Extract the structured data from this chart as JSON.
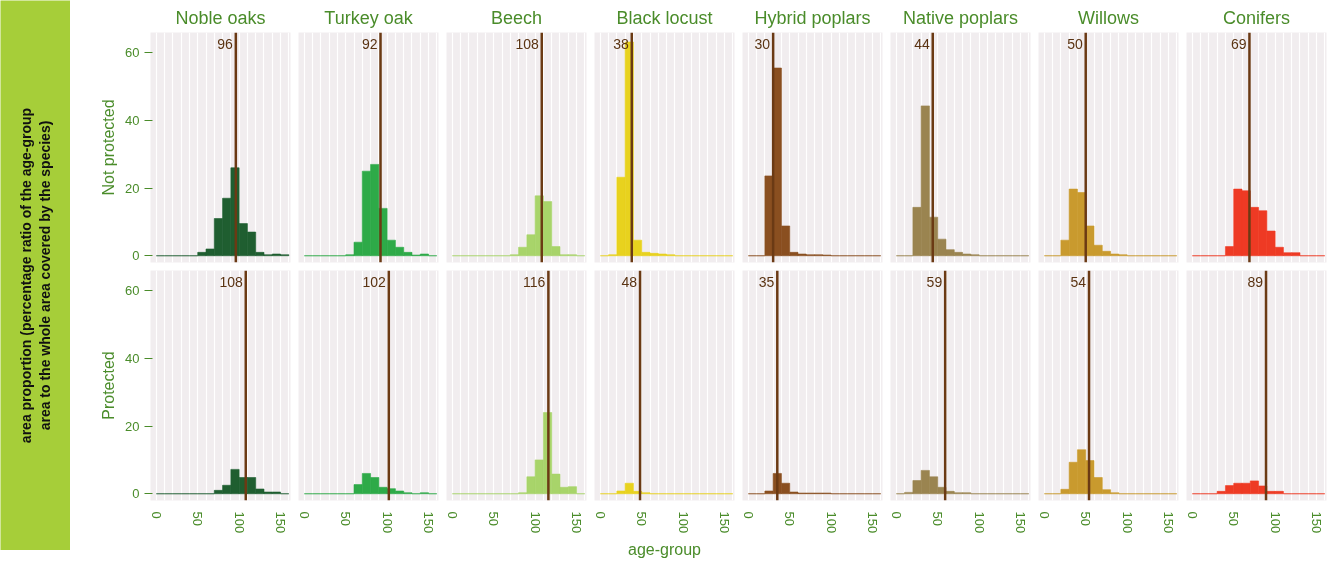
{
  "chart_data": [
    {
      "type": "histogram",
      "title": "Noble oaks",
      "ylabel": "Not protected",
      "annotations": [
        "area proportion (percentage ratio of the age-group area to the whole area covered by the species)"
      ],
      "bins": [
        0,
        10,
        20,
        30,
        40,
        50,
        60,
        70,
        80,
        90,
        100,
        110,
        120,
        130,
        140,
        150,
        160
      ],
      "values": [
        0,
        0,
        0,
        0,
        0,
        1,
        2,
        11,
        17,
        26,
        9.5,
        7,
        1,
        0.3,
        0.5,
        0.3
      ],
      "color": "#1f5e30",
      "xlim": [
        -7,
        162
      ],
      "ylim": [
        -2,
        66
      ],
      "xticks": [
        0,
        {
          "value": 10,
          "label": null
        },
        {
          "value": 20,
          "label": null
        },
        {
          "value": 30,
          "label": null
        },
        {
          "value": 40,
          "label": null
        },
        50,
        {
          "value": 60,
          "label": null
        },
        {
          "value": 70,
          "label": null
        },
        {
          "value": 80,
          "label": null
        },
        {
          "value": 90,
          "label": null
        },
        100,
        {
          "value": 110,
          "label": null
        },
        {
          "value": 120,
          "label": null
        },
        {
          "value": 130,
          "label": null
        },
        {
          "value": 140,
          "label": null
        },
        150,
        {
          "value": 160,
          "label": null
        }
      ],
      "yticks": [
        0,
        20,
        40,
        60
      ],
      "ref_lines": [
        {
          "axis": "x",
          "value": 96,
          "label": "96",
          "color": "#6b3a14"
        }
      ],
      "grid": "x",
      "tick_labels": "y"
    },
    {
      "type": "histogram",
      "title": "Turkey oak",
      "bins": [
        0,
        10,
        20,
        30,
        40,
        50,
        60,
        70,
        80,
        90,
        100,
        110,
        120,
        130,
        140,
        150,
        160
      ],
      "values": [
        0,
        0,
        0,
        0,
        0,
        0.3,
        4,
        25,
        27,
        14,
        4.6,
        2.5,
        1,
        0.2,
        0.5,
        0
      ],
      "color": "#2eaa48",
      "xlim": [
        -7,
        162
      ],
      "ylim": [
        -2,
        66
      ],
      "xticks": [
        0,
        {
          "value": 10,
          "label": null
        },
        {
          "value": 20,
          "label": null
        },
        {
          "value": 30,
          "label": null
        },
        {
          "value": 40,
          "label": null
        },
        50,
        {
          "value": 60,
          "label": null
        },
        {
          "value": 70,
          "label": null
        },
        {
          "value": 80,
          "label": null
        },
        {
          "value": 90,
          "label": null
        },
        100,
        {
          "value": 110,
          "label": null
        },
        {
          "value": 120,
          "label": null
        },
        {
          "value": 130,
          "label": null
        },
        {
          "value": 140,
          "label": null
        },
        150,
        {
          "value": 160,
          "label": null
        }
      ],
      "yticks": [
        0,
        20,
        40,
        60
      ],
      "ref_lines": [
        {
          "axis": "x",
          "value": 92,
          "label": "92",
          "color": "#6b3a14"
        }
      ],
      "grid": "x",
      "tick_labels": false
    },
    {
      "type": "histogram",
      "title": "Beech",
      "bins": [
        0,
        10,
        20,
        30,
        40,
        50,
        60,
        70,
        80,
        90,
        100,
        110,
        120,
        130,
        140,
        150,
        160
      ],
      "values": [
        0,
        0,
        0,
        0,
        0,
        0,
        0,
        0.3,
        2.5,
        6.2,
        17.7,
        16,
        2.7,
        0.3,
        0.3,
        0
      ],
      "color": "#a8d46a",
      "xlim": [
        -7,
        162
      ],
      "ylim": [
        -2,
        66
      ],
      "xticks": [
        0,
        {
          "value": 10,
          "label": null
        },
        {
          "value": 20,
          "label": null
        },
        {
          "value": 30,
          "label": null
        },
        {
          "value": 40,
          "label": null
        },
        50,
        {
          "value": 60,
          "label": null
        },
        {
          "value": 70,
          "label": null
        },
        {
          "value": 80,
          "label": null
        },
        {
          "value": 90,
          "label": null
        },
        100,
        {
          "value": 110,
          "label": null
        },
        {
          "value": 120,
          "label": null
        },
        {
          "value": 130,
          "label": null
        },
        {
          "value": 140,
          "label": null
        },
        150,
        {
          "value": 160,
          "label": null
        }
      ],
      "yticks": [
        0,
        20,
        40,
        60
      ],
      "ref_lines": [
        {
          "axis": "x",
          "value": 108,
          "label": "108",
          "color": "#6b3a14"
        }
      ],
      "grid": "x",
      "tick_labels": false
    },
    {
      "type": "histogram",
      "title": "Black locust",
      "bins": [
        0,
        10,
        20,
        30,
        40,
        50,
        60,
        70,
        80,
        90,
        100,
        110,
        120,
        130,
        140,
        150,
        160
      ],
      "values": [
        0,
        0.3,
        23.2,
        63.2,
        4.6,
        1,
        0.7,
        0.5,
        0.3,
        0,
        0,
        0,
        0,
        0,
        0,
        0
      ],
      "color": "#e8d21e",
      "xlim": [
        -7,
        162
      ],
      "ylim": [
        -2,
        66
      ],
      "xticks": [
        0,
        {
          "value": 10,
          "label": null
        },
        {
          "value": 20,
          "label": null
        },
        {
          "value": 30,
          "label": null
        },
        {
          "value": 40,
          "label": null
        },
        50,
        {
          "value": 60,
          "label": null
        },
        {
          "value": 70,
          "label": null
        },
        {
          "value": 80,
          "label": null
        },
        {
          "value": 90,
          "label": null
        },
        100,
        {
          "value": 110,
          "label": null
        },
        {
          "value": 120,
          "label": null
        },
        {
          "value": 130,
          "label": null
        },
        {
          "value": 140,
          "label": null
        },
        150,
        {
          "value": 160,
          "label": null
        }
      ],
      "yticks": [
        0,
        20,
        40,
        60
      ],
      "ref_lines": [
        {
          "axis": "x",
          "value": 38,
          "label": "38",
          "color": "#6b3a14"
        }
      ],
      "grid": "x",
      "tick_labels": false
    },
    {
      "type": "histogram",
      "title": "Hybrid poplars",
      "bins": [
        0,
        10,
        20,
        30,
        40,
        50,
        60,
        70,
        80,
        90,
        100,
        110,
        120,
        130,
        140,
        150,
        160
      ],
      "values": [
        0,
        0,
        23.6,
        55.5,
        8.8,
        1,
        0.5,
        0.3,
        0.3,
        0.2,
        0,
        0,
        0,
        0,
        0,
        0
      ],
      "color": "#8a4f20",
      "xlim": [
        -7,
        162
      ],
      "ylim": [
        -2,
        66
      ],
      "xticks": [
        0,
        {
          "value": 10,
          "label": null
        },
        {
          "value": 20,
          "label": null
        },
        {
          "value": 30,
          "label": null
        },
        {
          "value": 40,
          "label": null
        },
        50,
        {
          "value": 60,
          "label": null
        },
        {
          "value": 70,
          "label": null
        },
        {
          "value": 80,
          "label": null
        },
        {
          "value": 90,
          "label": null
        },
        100,
        {
          "value": 110,
          "label": null
        },
        {
          "value": 120,
          "label": null
        },
        {
          "value": 130,
          "label": null
        },
        {
          "value": 140,
          "label": null
        },
        150,
        {
          "value": 160,
          "label": null
        }
      ],
      "yticks": [
        0,
        20,
        40,
        60
      ],
      "ref_lines": [
        {
          "axis": "x",
          "value": 30,
          "label": "30",
          "color": "#6b3a14"
        }
      ],
      "grid": "x",
      "tick_labels": false
    },
    {
      "type": "histogram",
      "title": "Native poplars",
      "bins": [
        0,
        10,
        20,
        30,
        40,
        50,
        60,
        70,
        80,
        90,
        100,
        110,
        120,
        130,
        140,
        150,
        160
      ],
      "values": [
        0,
        0,
        14.3,
        44.3,
        11.4,
        4.9,
        1.8,
        1,
        0.5,
        0.3,
        0,
        0,
        0,
        0,
        0,
        0
      ],
      "color": "#9a8450",
      "xlim": [
        -7,
        162
      ],
      "ylim": [
        -2,
        66
      ],
      "xticks": [
        0,
        {
          "value": 10,
          "label": null
        },
        {
          "value": 20,
          "label": null
        },
        {
          "value": 30,
          "label": null
        },
        {
          "value": 40,
          "label": null
        },
        50,
        {
          "value": 60,
          "label": null
        },
        {
          "value": 70,
          "label": null
        },
        {
          "value": 80,
          "label": null
        },
        {
          "value": 90,
          "label": null
        },
        100,
        {
          "value": 110,
          "label": null
        },
        {
          "value": 120,
          "label": null
        },
        {
          "value": 130,
          "label": null
        },
        {
          "value": 140,
          "label": null
        },
        150,
        {
          "value": 160,
          "label": null
        }
      ],
      "yticks": [
        0,
        20,
        40,
        60
      ],
      "ref_lines": [
        {
          "axis": "x",
          "value": 44,
          "label": "44",
          "color": "#6b3a14"
        }
      ],
      "grid": "x",
      "tick_labels": false
    },
    {
      "type": "histogram",
      "title": "Willows",
      "bins": [
        0,
        10,
        20,
        30,
        40,
        50,
        60,
        70,
        80,
        90,
        100,
        110,
        120,
        130,
        140,
        150,
        160
      ],
      "values": [
        0,
        0,
        4.6,
        19.7,
        18.7,
        8.8,
        3.1,
        1.3,
        0.5,
        0.3,
        0,
        0,
        0,
        0,
        0,
        0
      ],
      "color": "#c99a2e",
      "xlim": [
        -7,
        162
      ],
      "ylim": [
        -2,
        66
      ],
      "xticks": [
        0,
        {
          "value": 10,
          "label": null
        },
        {
          "value": 20,
          "label": null
        },
        {
          "value": 30,
          "label": null
        },
        {
          "value": 40,
          "label": null
        },
        50,
        {
          "value": 60,
          "label": null
        },
        {
          "value": 70,
          "label": null
        },
        {
          "value": 80,
          "label": null
        },
        {
          "value": 90,
          "label": null
        },
        100,
        {
          "value": 110,
          "label": null
        },
        {
          "value": 120,
          "label": null
        },
        {
          "value": 130,
          "label": null
        },
        {
          "value": 140,
          "label": null
        },
        150,
        {
          "value": 160,
          "label": null
        }
      ],
      "yticks": [
        0,
        20,
        40,
        60
      ],
      "ref_lines": [
        {
          "axis": "x",
          "value": 50,
          "label": "50",
          "color": "#6b3a14"
        }
      ],
      "grid": "x",
      "tick_labels": false
    },
    {
      "type": "histogram",
      "title": "Conifers",
      "bins": [
        0,
        10,
        20,
        30,
        40,
        50,
        60,
        70,
        80,
        90,
        100,
        110,
        120,
        130,
        140,
        150,
        160
      ],
      "values": [
        0,
        0,
        0,
        0,
        2.7,
        19.7,
        19.2,
        14.3,
        13.3,
        7.3,
        2.5,
        0.9,
        0.9,
        0,
        0,
        0
      ],
      "color": "#ee3a24",
      "xlim": [
        -7,
        162
      ],
      "ylim": [
        -2,
        66
      ],
      "xticks": [
        0,
        {
          "value": 10,
          "label": null
        },
        {
          "value": 20,
          "label": null
        },
        {
          "value": 30,
          "label": null
        },
        {
          "value": 40,
          "label": null
        },
        50,
        {
          "value": 60,
          "label": null
        },
        {
          "value": 70,
          "label": null
        },
        {
          "value": 80,
          "label": null
        },
        {
          "value": 90,
          "label": null
        },
        100,
        {
          "value": 110,
          "label": null
        },
        {
          "value": 120,
          "label": null
        },
        {
          "value": 130,
          "label": null
        },
        {
          "value": 140,
          "label": null
        },
        150,
        {
          "value": 160,
          "label": null
        }
      ],
      "yticks": [
        0,
        20,
        40,
        60
      ],
      "ref_lines": [
        {
          "axis": "x",
          "value": 69,
          "label": "69",
          "color": "#6b3a14"
        }
      ],
      "grid": "x",
      "tick_labels": false
    },
    {
      "type": "histogram",
      "ylabel": "Protected",
      "bins": [
        0,
        10,
        20,
        30,
        40,
        50,
        60,
        70,
        80,
        90,
        100,
        110,
        120,
        130,
        140,
        150,
        160
      ],
      "values": [
        0,
        0,
        0,
        0,
        0,
        0,
        0,
        1,
        2.5,
        7.2,
        4.8,
        4.8,
        1.4,
        0.5,
        0.5,
        0
      ],
      "color": "#1f5e30",
      "xlim": [
        -7,
        162
      ],
      "ylim": [
        -2,
        66
      ],
      "xticks": [
        0,
        {
          "value": 10,
          "label": null
        },
        {
          "value": 20,
          "label": null
        },
        {
          "value": 30,
          "label": null
        },
        {
          "value": 40,
          "label": null
        },
        50,
        {
          "value": 60,
          "label": null
        },
        {
          "value": 70,
          "label": null
        },
        {
          "value": 80,
          "label": null
        },
        {
          "value": 90,
          "label": null
        },
        100,
        {
          "value": 110,
          "label": null
        },
        {
          "value": 120,
          "label": null
        },
        {
          "value": 130,
          "label": null
        },
        {
          "value": 140,
          "label": null
        },
        150,
        {
          "value": 160,
          "label": null
        }
      ],
      "yticks": [
        0,
        20,
        40,
        60
      ],
      "ref_lines": [
        {
          "axis": "x",
          "value": 108,
          "label": "108",
          "color": "#6b3a14"
        }
      ],
      "grid": "x"
    },
    {
      "type": "histogram",
      "bins": [
        0,
        10,
        20,
        30,
        40,
        50,
        60,
        70,
        80,
        90,
        100,
        110,
        120,
        130,
        140,
        150,
        160
      ],
      "values": [
        0,
        0,
        0,
        0,
        0,
        0,
        2.7,
        6,
        4.8,
        1.9,
        1.5,
        0.8,
        0.3,
        0,
        0.3,
        0
      ],
      "color": "#2eaa48",
      "xlim": [
        -7,
        162
      ],
      "ylim": [
        -2,
        66
      ],
      "xticks": [
        0,
        {
          "value": 10,
          "label": null
        },
        {
          "value": 20,
          "label": null
        },
        {
          "value": 30,
          "label": null
        },
        {
          "value": 40,
          "label": null
        },
        50,
        {
          "value": 60,
          "label": null
        },
        {
          "value": 70,
          "label": null
        },
        {
          "value": 80,
          "label": null
        },
        {
          "value": 90,
          "label": null
        },
        100,
        {
          "value": 110,
          "label": null
        },
        {
          "value": 120,
          "label": null
        },
        {
          "value": 130,
          "label": null
        },
        {
          "value": 140,
          "label": null
        },
        150,
        {
          "value": 160,
          "label": null
        }
      ],
      "yticks": [
        0,
        20,
        40,
        60
      ],
      "ref_lines": [
        {
          "axis": "x",
          "value": 102,
          "label": "102",
          "color": "#6b3a14"
        }
      ],
      "grid": "x",
      "tick_labels": "x"
    },
    {
      "type": "histogram",
      "bins": [
        0,
        10,
        20,
        30,
        40,
        50,
        60,
        70,
        80,
        90,
        100,
        110,
        120,
        130,
        140,
        150,
        160
      ],
      "values": [
        0,
        0,
        0,
        0,
        0,
        0,
        0,
        0,
        0.3,
        5,
        10,
        24,
        5.8,
        1.9,
        2.1,
        0
      ],
      "color": "#a8d46a",
      "xlim": [
        -7,
        162
      ],
      "ylim": [
        -2,
        66
      ],
      "xticks": [
        0,
        {
          "value": 10,
          "label": null
        },
        {
          "value": 20,
          "label": null
        },
        {
          "value": 30,
          "label": null
        },
        {
          "value": 40,
          "label": null
        },
        50,
        {
          "value": 60,
          "label": null
        },
        {
          "value": 70,
          "label": null
        },
        {
          "value": 80,
          "label": null
        },
        {
          "value": 90,
          "label": null
        },
        100,
        {
          "value": 110,
          "label": null
        },
        {
          "value": 120,
          "label": null
        },
        {
          "value": 130,
          "label": null
        },
        {
          "value": 140,
          "label": null
        },
        150,
        {
          "value": 160,
          "label": null
        }
      ],
      "yticks": [
        0,
        20,
        40,
        60
      ],
      "ref_lines": [
        {
          "axis": "x",
          "value": 116,
          "label": "116",
          "color": "#6b3a14"
        }
      ],
      "grid": "x",
      "tick_labels": "x"
    },
    {
      "type": "histogram",
      "bins": [
        0,
        10,
        20,
        30,
        40,
        50,
        60,
        70,
        80,
        90,
        100,
        110,
        120,
        130,
        140,
        150,
        160
      ],
      "values": [
        0,
        0,
        0.8,
        3.1,
        0.7,
        0.3,
        0,
        0,
        0,
        0,
        0,
        0,
        0,
        0,
        0,
        0
      ],
      "color": "#e8d21e",
      "xlabel": "age-group",
      "xlim": [
        -7,
        162
      ],
      "ylim": [
        -2,
        66
      ],
      "xticks": [
        0,
        {
          "value": 10,
          "label": null
        },
        {
          "value": 20,
          "label": null
        },
        {
          "value": 30,
          "label": null
        },
        {
          "value": 40,
          "label": null
        },
        50,
        {
          "value": 60,
          "label": null
        },
        {
          "value": 70,
          "label": null
        },
        {
          "value": 80,
          "label": null
        },
        {
          "value": 90,
          "label": null
        },
        100,
        {
          "value": 110,
          "label": null
        },
        {
          "value": 120,
          "label": null
        },
        {
          "value": 130,
          "label": null
        },
        {
          "value": 140,
          "label": null
        },
        150,
        {
          "value": 160,
          "label": null
        }
      ],
      "yticks": [
        0,
        20,
        40,
        60
      ],
      "ref_lines": [
        {
          "axis": "x",
          "value": 48,
          "label": "48",
          "color": "#6b3a14"
        }
      ],
      "grid": "x",
      "tick_labels": "x"
    },
    {
      "type": "histogram",
      "bins": [
        0,
        10,
        20,
        30,
        40,
        50,
        60,
        70,
        80,
        90,
        100,
        110,
        120,
        130,
        140,
        150,
        160
      ],
      "values": [
        0,
        0,
        0.8,
        6,
        3.1,
        0.5,
        0.2,
        0.2,
        0.2,
        0.2,
        0,
        0,
        0,
        0,
        0,
        0
      ],
      "color": "#8a4f20",
      "xlim": [
        -7,
        162
      ],
      "ylim": [
        -2,
        66
      ],
      "xticks": [
        0,
        {
          "value": 10,
          "label": null
        },
        {
          "value": 20,
          "label": null
        },
        {
          "value": 30,
          "label": null
        },
        {
          "value": 40,
          "label": null
        },
        50,
        {
          "value": 60,
          "label": null
        },
        {
          "value": 70,
          "label": null
        },
        {
          "value": 80,
          "label": null
        },
        {
          "value": 90,
          "label": null
        },
        100,
        {
          "value": 110,
          "label": null
        },
        {
          "value": 120,
          "label": null
        },
        {
          "value": 130,
          "label": null
        },
        {
          "value": 140,
          "label": null
        },
        150,
        {
          "value": 160,
          "label": null
        }
      ],
      "yticks": [
        0,
        20,
        40,
        60
      ],
      "ref_lines": [
        {
          "axis": "x",
          "value": 35,
          "label": "35",
          "color": "#6b3a14"
        }
      ],
      "grid": "x",
      "tick_labels": "x"
    },
    {
      "type": "histogram",
      "bins": [
        0,
        10,
        20,
        30,
        40,
        50,
        60,
        70,
        80,
        90,
        100,
        110,
        120,
        130,
        140,
        150,
        160
      ],
      "values": [
        0,
        0.4,
        3.9,
        6.9,
        5,
        1.9,
        0.7,
        0.3,
        0.3,
        0,
        0,
        0,
        0,
        0,
        0,
        0
      ],
      "color": "#9a8450",
      "xlim": [
        -7,
        162
      ],
      "ylim": [
        -2,
        66
      ],
      "xticks": [
        0,
        {
          "value": 10,
          "label": null
        },
        {
          "value": 20,
          "label": null
        },
        {
          "value": 30,
          "label": null
        },
        {
          "value": 40,
          "label": null
        },
        50,
        {
          "value": 60,
          "label": null
        },
        {
          "value": 70,
          "label": null
        },
        {
          "value": 80,
          "label": null
        },
        {
          "value": 90,
          "label": null
        },
        100,
        {
          "value": 110,
          "label": null
        },
        {
          "value": 120,
          "label": null
        },
        {
          "value": 130,
          "label": null
        },
        {
          "value": 140,
          "label": null
        },
        150,
        {
          "value": 160,
          "label": null
        }
      ],
      "yticks": [
        0,
        20,
        40,
        60
      ],
      "ref_lines": [
        {
          "axis": "x",
          "value": 59,
          "label": "59",
          "color": "#6b3a14"
        }
      ],
      "grid": "x",
      "tick_labels": "x"
    },
    {
      "type": "histogram",
      "bins": [
        0,
        10,
        20,
        30,
        40,
        50,
        60,
        70,
        80,
        90,
        100,
        110,
        120,
        130,
        140,
        150,
        160
      ],
      "values": [
        0,
        0,
        1.3,
        9.3,
        13,
        9.8,
        4.8,
        1.2,
        0.3,
        0,
        0,
        0,
        0,
        0,
        0,
        0
      ],
      "color": "#c99a2e",
      "xlim": [
        -7,
        162
      ],
      "ylim": [
        -2,
        66
      ],
      "xticks": [
        0,
        {
          "value": 10,
          "label": null
        },
        {
          "value": 20,
          "label": null
        },
        {
          "value": 30,
          "label": null
        },
        {
          "value": 40,
          "label": null
        },
        50,
        {
          "value": 60,
          "label": null
        },
        {
          "value": 70,
          "label": null
        },
        {
          "value": 80,
          "label": null
        },
        {
          "value": 90,
          "label": null
        },
        100,
        {
          "value": 110,
          "label": null
        },
        {
          "value": 120,
          "label": null
        },
        {
          "value": 130,
          "label": null
        },
        {
          "value": 140,
          "label": null
        },
        150,
        {
          "value": 160,
          "label": null
        }
      ],
      "yticks": [
        0,
        20,
        40,
        60
      ],
      "ref_lines": [
        {
          "axis": "x",
          "value": 54,
          "label": "54",
          "color": "#6b3a14"
        }
      ],
      "grid": "x",
      "tick_labels": "x"
    },
    {
      "type": "histogram",
      "bins": [
        0,
        10,
        20,
        30,
        40,
        50,
        60,
        70,
        80,
        90,
        100,
        110,
        120,
        130,
        140,
        150,
        160
      ],
      "values": [
        0,
        0,
        0,
        0.7,
        2.4,
        3.1,
        3.1,
        3.8,
        2.3,
        0.7,
        0.7,
        0,
        0,
        0,
        0,
        0
      ],
      "color": "#ee3a24",
      "xlim": [
        -7,
        162
      ],
      "ylim": [
        -2,
        66
      ],
      "xticks": [
        0,
        {
          "value": 10,
          "label": null
        },
        {
          "value": 20,
          "label": null
        },
        {
          "value": 30,
          "label": null
        },
        {
          "value": 40,
          "label": null
        },
        50,
        {
          "value": 60,
          "label": null
        },
        {
          "value": 70,
          "label": null
        },
        {
          "value": 80,
          "label": null
        },
        {
          "value": 90,
          "label": null
        },
        100,
        {
          "value": 110,
          "label": null
        },
        {
          "value": 120,
          "label": null
        },
        {
          "value": 130,
          "label": null
        },
        {
          "value": 140,
          "label": null
        },
        150,
        {
          "value": 160,
          "label": null
        }
      ],
      "yticks": [
        0,
        20,
        40,
        60
      ],
      "ref_lines": [
        {
          "axis": "x",
          "value": 89,
          "label": "89",
          "color": "#6b3a14"
        }
      ],
      "grid": "x",
      "tick_labels": "x"
    }
  ]
}
